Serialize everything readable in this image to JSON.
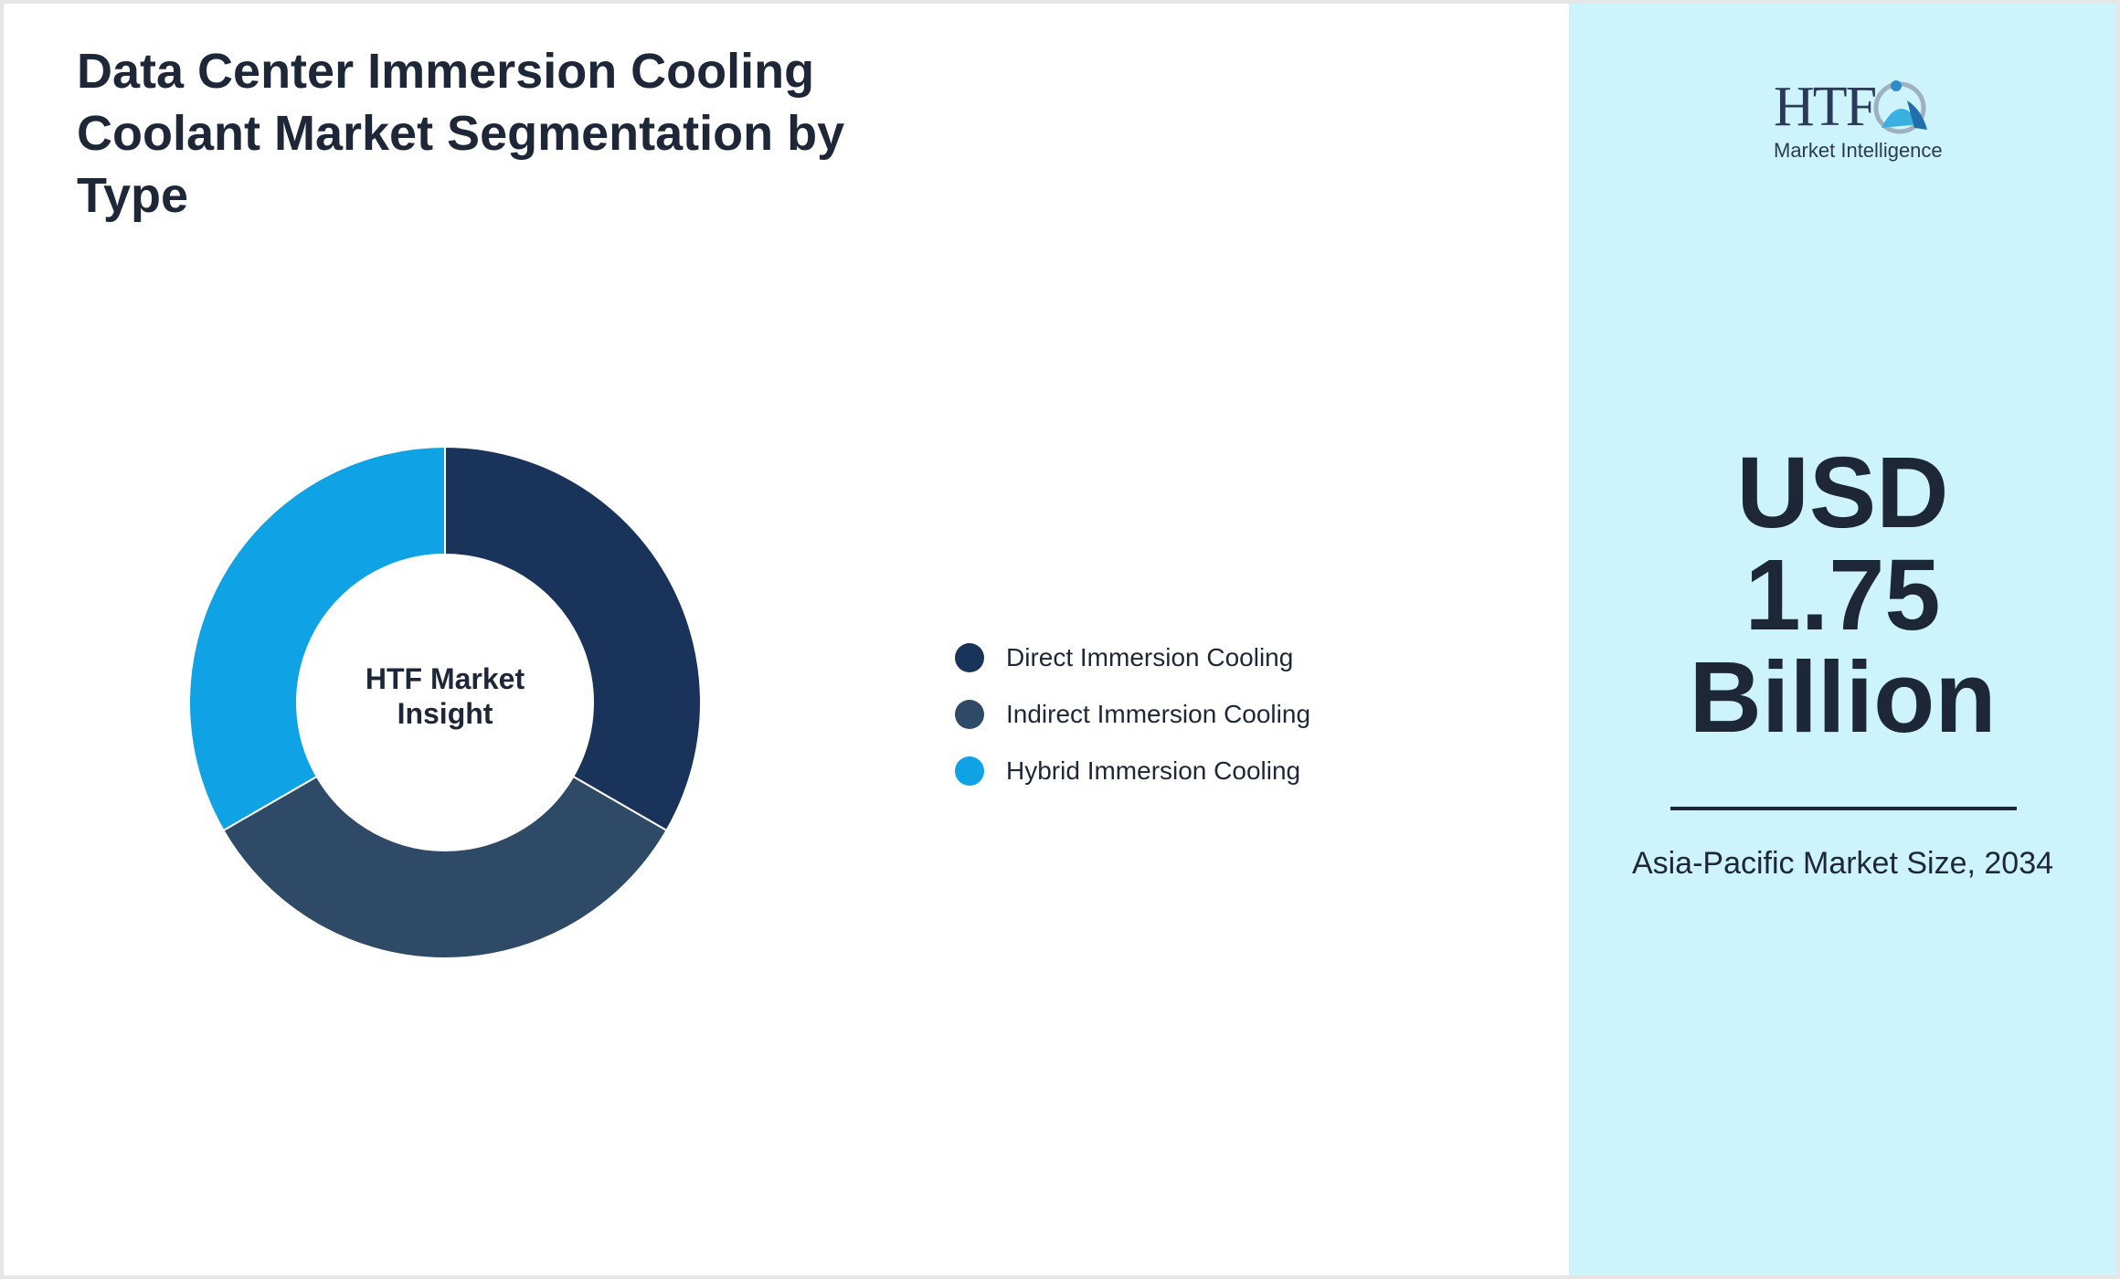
{
  "header": {
    "title": "Data Center Immersion Cooling Coolant Market Segmentation by Type"
  },
  "chart_data": {
    "type": "pie",
    "title": "Data Center Immersion Cooling Coolant Market Segmentation by Type",
    "center_label": "HTF Market Insight",
    "legend_placement": "right",
    "categories": [
      "Direct Immersion Cooling",
      "Indirect Immersion Cooling",
      "Hybrid Immersion Cooling"
    ],
    "values": [
      33.3,
      33.3,
      33.3
    ],
    "colors": [
      "#1a335a",
      "#2e4a66",
      "#0fa3e6"
    ]
  },
  "sidebar": {
    "logo_text": "HTF",
    "logo_subtext": "Market Intelligence",
    "value": "USD 1.75 Billion",
    "value_lines": [
      "USD",
      "1.75",
      "Billion"
    ],
    "label": "Asia-Pacific Market Size, 2034",
    "background": "#cdf4fc"
  }
}
